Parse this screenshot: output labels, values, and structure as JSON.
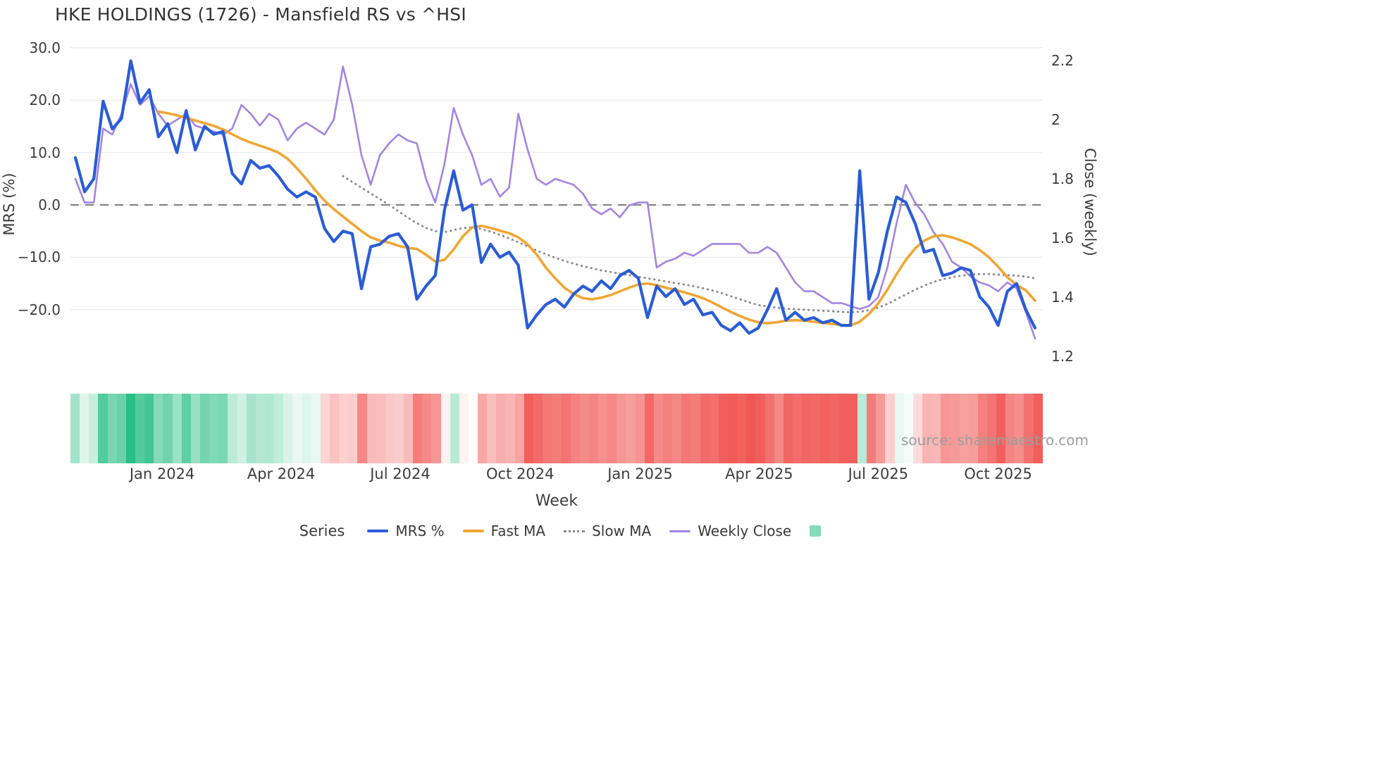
{
  "title": "HKE HOLDINGS (1726) - Mansfield RS vs ^HSI",
  "watermark": "source: sharemaestro.com",
  "axes": {
    "left": {
      "label": "MRS (%)",
      "ticks": [
        {
          "label": "30.0",
          "value": 30
        },
        {
          "label": "20.0",
          "value": 20
        },
        {
          "label": "10.0",
          "value": 10
        },
        {
          "label": "0.0",
          "value": 0
        },
        {
          "label": "−10.0",
          "value": -10
        },
        {
          "label": "−20.0",
          "value": -20
        }
      ],
      "range": [
        -30.1,
        31.0
      ]
    },
    "right": {
      "label": "Close (weekly)",
      "ticks": [
        {
          "label": "2.2",
          "value": 2.2
        },
        {
          "label": "2",
          "value": 2.0
        },
        {
          "label": "1.8",
          "value": 1.8
        },
        {
          "label": "1.6",
          "value": 1.6
        },
        {
          "label": "1.4",
          "value": 1.4
        },
        {
          "label": "1.2",
          "value": 1.2
        }
      ],
      "range": [
        1.16,
        2.26
      ]
    },
    "x": {
      "label": "Week",
      "ticks": [
        {
          "label": "Jan 2024",
          "week_index": 9.4
        },
        {
          "label": "Apr 2024",
          "week_index": 22.3
        },
        {
          "label": "Jul 2024",
          "week_index": 35.2
        },
        {
          "label": "Oct 2024",
          "week_index": 48.2
        },
        {
          "label": "Jan 2025",
          "week_index": 61.2
        },
        {
          "label": "Apr 2025",
          "week_index": 74.1
        },
        {
          "label": "Jul 2025",
          "week_index": 87.0
        },
        {
          "label": "Oct 2025",
          "week_index": 100.0
        }
      ]
    }
  },
  "legend": {
    "title": "Series",
    "items": [
      {
        "label": "MRS %",
        "swatch": "line",
        "color": "#2a5cd6",
        "thickness": 4
      },
      {
        "label": "Fast MA",
        "swatch": "line",
        "color": "#efa633",
        "thickness": 4
      },
      {
        "label": "Slow MA",
        "swatch": "dotted",
        "color": "#8b8b8b",
        "thickness": 3
      },
      {
        "label": "Weekly Close",
        "swatch": "line",
        "color": "#a285e2",
        "thickness": 3
      },
      {
        "label": "",
        "swatch": "square",
        "color": "#84dcba",
        "thickness": 16
      }
    ]
  },
  "chart_data": {
    "type": "line",
    "title": "HKE HOLDINGS (1726) - Mansfield RS vs ^HSI",
    "xlabel": "Week",
    "ylabel_left": "MRS (%)",
    "ylabel_right": "Close (weekly)",
    "n_points": 105,
    "zero_line": true,
    "grid": "horizontal",
    "series": [
      {
        "name": "MRS %",
        "axis": "left",
        "color": "#2a5cd6",
        "style": "solid",
        "width": 4.2,
        "values": [
          9,
          2.5,
          5,
          19.8,
          14.5,
          16.5,
          27.5,
          19.5,
          22,
          13,
          15.5,
          10,
          18,
          10.5,
          15,
          13.5,
          14,
          6,
          4,
          8.5,
          7,
          7.5,
          5.5,
          3,
          1.5,
          2.5,
          1.5,
          -4.5,
          -7,
          -5,
          -5.5,
          -16,
          -8,
          -7.5,
          -6,
          -5.5,
          -8,
          -18,
          -15.5,
          -13.5,
          -1,
          6.5,
          -1,
          0,
          -11,
          -7.5,
          -10,
          -9,
          -11.5,
          -23.5,
          -21,
          -19,
          -18,
          -19.5,
          -17,
          -15.5,
          -16.5,
          -14.5,
          -16,
          -13.5,
          -12.5,
          -14,
          -21.5,
          -15.5,
          -17.5,
          -16,
          -19,
          -18,
          -21,
          -20.5,
          -23,
          -24,
          -22.5,
          -24.5,
          -23.5,
          -20,
          -16,
          -22,
          -20.5,
          -22,
          -21.5,
          -22.5,
          -22,
          -23,
          -23,
          6.5,
          -18,
          -13,
          -5,
          1.5,
          0.5,
          -3.5,
          -9,
          -8.5,
          -13.5,
          -13,
          -12,
          -12.5,
          -17.5,
          -19.5,
          -23,
          -16.5,
          -15,
          -20,
          -23.5
        ]
      },
      {
        "name": "Fast MA",
        "axis": "left",
        "color": "#efa633",
        "style": "solid",
        "width": 3.6,
        "values": [
          null,
          null,
          null,
          null,
          null,
          null,
          null,
          null,
          null,
          17.8,
          17.5,
          17.1,
          16.6,
          16.1,
          15.6,
          15.1,
          14.4,
          13.5,
          12.6,
          11.9,
          11.3,
          10.7,
          10,
          8.8,
          7,
          5,
          2.8,
          0.8,
          -0.8,
          -2.2,
          -3.6,
          -5,
          -6.2,
          -6.8,
          -7.2,
          -7.8,
          -8.2,
          -8.4,
          -9.5,
          -10.8,
          -10.5,
          -8.5,
          -6,
          -4.3,
          -4,
          -4.4,
          -4.9,
          -5.4,
          -6.2,
          -7.5,
          -9.5,
          -12,
          -14,
          -15.8,
          -17,
          -17.8,
          -18,
          -17.7,
          -17.2,
          -16.5,
          -15.8,
          -15.2,
          -15,
          -15.3,
          -15.8,
          -16.2,
          -16.7,
          -17.2,
          -17.8,
          -18.6,
          -19.5,
          -20.4,
          -21.2,
          -21.9,
          -22.4,
          -22.6,
          -22.4,
          -22.1,
          -22,
          -22.1,
          -22.3,
          -22.5,
          -22.7,
          -22.9,
          -23,
          -22.3,
          -20.8,
          -18.8,
          -16.2,
          -13.2,
          -10.5,
          -8.3,
          -6.8,
          -6,
          -5.8,
          -6.2,
          -6.8,
          -7.5,
          -8.6,
          -10,
          -11.8,
          -13.8,
          -15.3,
          -16.3,
          -18.3
        ]
      },
      {
        "name": "Slow MA",
        "axis": "left",
        "color": "#8b8b8b",
        "style": "dotted",
        "width": 3,
        "values": [
          null,
          null,
          null,
          null,
          null,
          null,
          null,
          null,
          null,
          null,
          null,
          null,
          null,
          null,
          null,
          null,
          null,
          null,
          null,
          null,
          null,
          null,
          null,
          null,
          null,
          null,
          null,
          null,
          null,
          5.5,
          4.4,
          3.3,
          2.2,
          1.1,
          0,
          -1.2,
          -2.4,
          -3.5,
          -4.4,
          -5,
          -5.2,
          -4.8,
          -4.4,
          -4.3,
          -4.6,
          -5.1,
          -5.7,
          -6.4,
          -7.1,
          -7.9,
          -8.7,
          -9.4,
          -10.1,
          -10.7,
          -11.2,
          -11.7,
          -12.1,
          -12.5,
          -12.8,
          -13.1,
          -13.4,
          -13.7,
          -14,
          -14.3,
          -14.6,
          -14.9,
          -15.2,
          -15.5,
          -15.9,
          -16.3,
          -16.8,
          -17.4,
          -18,
          -18.6,
          -19.1,
          -19.4,
          -19.6,
          -19.8,
          -19.9,
          -20,
          -20.1,
          -20.2,
          -20.3,
          -20.4,
          -20.5,
          -20.4,
          -20.1,
          -19.6,
          -18.9,
          -18,
          -17.1,
          -16.2,
          -15.4,
          -14.7,
          -14.2,
          -13.8,
          -13.5,
          -13.3,
          -13.2,
          -13.2,
          -13.3,
          -13.4,
          -13.5,
          -13.7,
          -14
        ]
      },
      {
        "name": "Weekly Close",
        "axis": "right",
        "color": "#a285e2",
        "style": "solid",
        "width": 2.6,
        "values": [
          1.8,
          1.72,
          1.72,
          1.97,
          1.95,
          2.02,
          2.12,
          2.05,
          2.08,
          2.02,
          1.98,
          2.0,
          2.02,
          1.98,
          1.97,
          1.96,
          1.95,
          1.97,
          2.05,
          2.02,
          1.98,
          2.02,
          2.0,
          1.93,
          1.97,
          1.99,
          1.97,
          1.95,
          2.0,
          2.18,
          2.05,
          1.88,
          1.78,
          1.88,
          1.92,
          1.95,
          1.93,
          1.92,
          1.8,
          1.72,
          1.85,
          2.04,
          1.95,
          1.88,
          1.78,
          1.8,
          1.74,
          1.77,
          2.02,
          1.9,
          1.8,
          1.78,
          1.8,
          1.79,
          1.78,
          1.75,
          1.7,
          1.68,
          1.7,
          1.67,
          1.71,
          1.72,
          1.72,
          1.5,
          1.52,
          1.53,
          1.55,
          1.54,
          1.56,
          1.58,
          1.58,
          1.58,
          1.58,
          1.55,
          1.55,
          1.57,
          1.55,
          1.5,
          1.45,
          1.42,
          1.42,
          1.4,
          1.38,
          1.38,
          1.37,
          1.36,
          1.37,
          1.4,
          1.5,
          1.65,
          1.78,
          1.72,
          1.68,
          1.62,
          1.58,
          1.52,
          1.5,
          1.47,
          1.45,
          1.44,
          1.42,
          1.45,
          1.43,
          1.35,
          1.26
        ]
      }
    ],
    "heatmap_strip": {
      "derived_from": "MRS %",
      "positive_color": "#28be86",
      "negative_color": "#f0504d",
      "neutral_color": "#ffffff"
    }
  }
}
